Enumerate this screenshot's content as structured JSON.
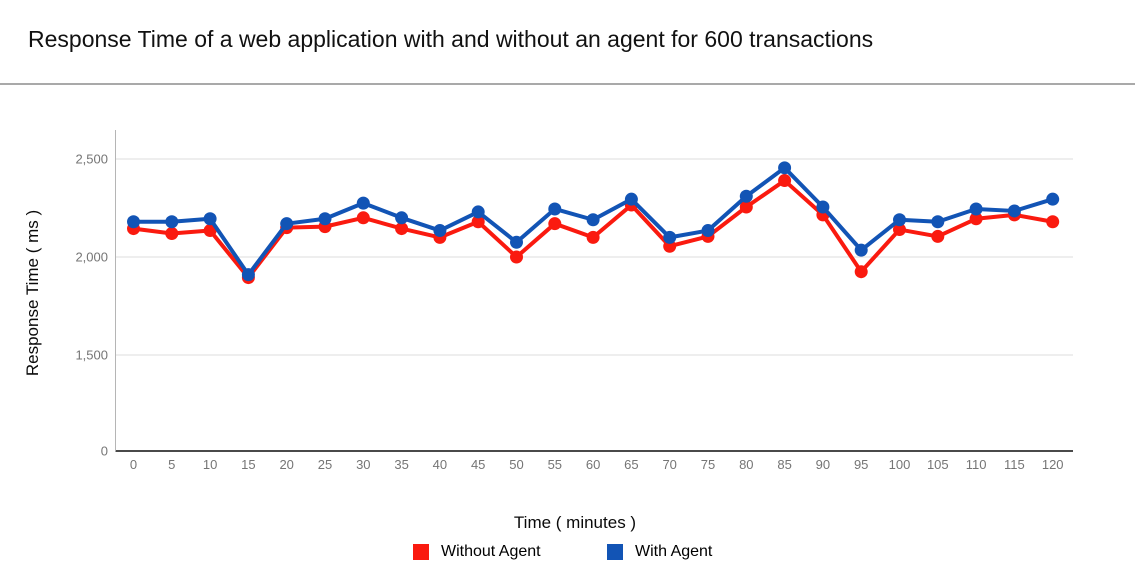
{
  "title": "Response Time of a web application with and without an agent for 600 transactions",
  "chart_data": {
    "type": "line",
    "title": "Response Time of a web application with and without an agent for 600 transactions",
    "xlabel": "Time ( minutes )",
    "ylabel": "Response Time ( ms )",
    "x": [
      0,
      5,
      10,
      15,
      20,
      25,
      30,
      35,
      40,
      45,
      50,
      55,
      60,
      65,
      70,
      75,
      80,
      85,
      90,
      95,
      100,
      105,
      110,
      115,
      120
    ],
    "series": [
      {
        "name": "Without Agent",
        "color": "#fa1a0f",
        "values": [
          2145,
          2120,
          2135,
          1895,
          2150,
          2155,
          2200,
          2145,
          2100,
          2180,
          2000,
          2170,
          2100,
          2265,
          2055,
          2105,
          2255,
          2390,
          2215,
          1925,
          2140,
          2105,
          2195,
          2215,
          2180
        ]
      },
      {
        "name": "With Agent",
        "color": "#1254b5",
        "values": [
          2180,
          2180,
          2195,
          1910,
          2170,
          2195,
          2275,
          2200,
          2135,
          2230,
          2075,
          2245,
          2190,
          2295,
          2100,
          2135,
          2310,
          2455,
          2255,
          2035,
          2190,
          2180,
          2245,
          2235,
          2295
        ]
      }
    ],
    "y_ticks": [
      {
        "value": 0,
        "label": "0"
      },
      {
        "value": 1500,
        "label": "1,500"
      },
      {
        "value": 2000,
        "label": "2,000"
      },
      {
        "value": 2500,
        "label": "2,500"
      }
    ],
    "ylim": [
      0,
      2650
    ],
    "xlim": [
      0,
      120
    ],
    "grid": "horizontal",
    "legend_position": "bottom"
  }
}
